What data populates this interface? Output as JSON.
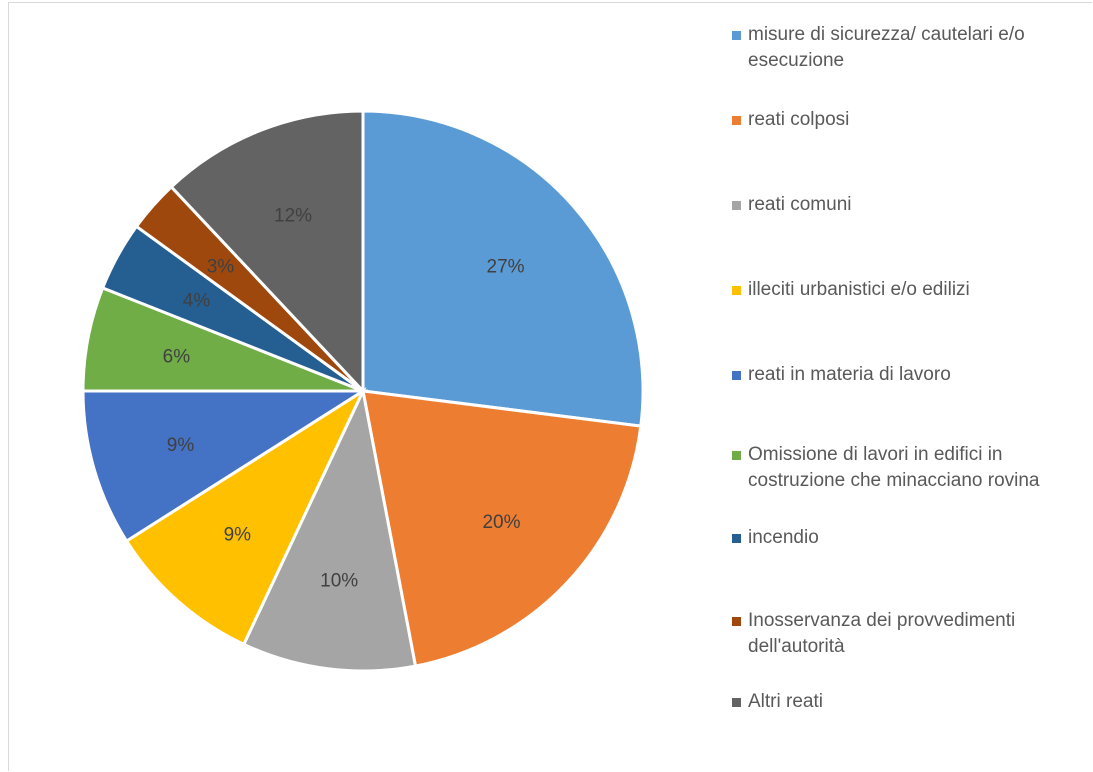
{
  "chart_data": {
    "type": "pie",
    "title": "",
    "slices": [
      {
        "label": "misure di sicurezza/ cautelari e/o esecuzione",
        "value": 27,
        "display": "27%",
        "color": "#5b9bd5"
      },
      {
        "label": "reati colposi",
        "value": 20,
        "display": "20%",
        "color": "#ed7d31"
      },
      {
        "label": "reati comuni",
        "value": 10,
        "display": "10%",
        "color": "#a5a5a5"
      },
      {
        "label": "illeciti urbanistici e/o edilizi",
        "value": 9,
        "display": "9%",
        "color": "#ffc000"
      },
      {
        "label": "reati in materia di lavoro",
        "value": 9,
        "display": "9%",
        "color": "#4472c4"
      },
      {
        "label": "Omissione di lavori in edifici in costruzione che minacciano rovina",
        "value": 6,
        "display": "6%",
        "color": "#70ad47"
      },
      {
        "label": "incendio",
        "value": 4,
        "display": "4%",
        "color": "#255e91"
      },
      {
        "label": "Inosservanza dei provvedimenti dell'autorità",
        "value": 3,
        "display": "3%",
        "color": "#9e480e"
      },
      {
        "label": "Altri reati",
        "value": 12,
        "display": "12%",
        "color": "#636363"
      }
    ],
    "legend_position": "right"
  }
}
